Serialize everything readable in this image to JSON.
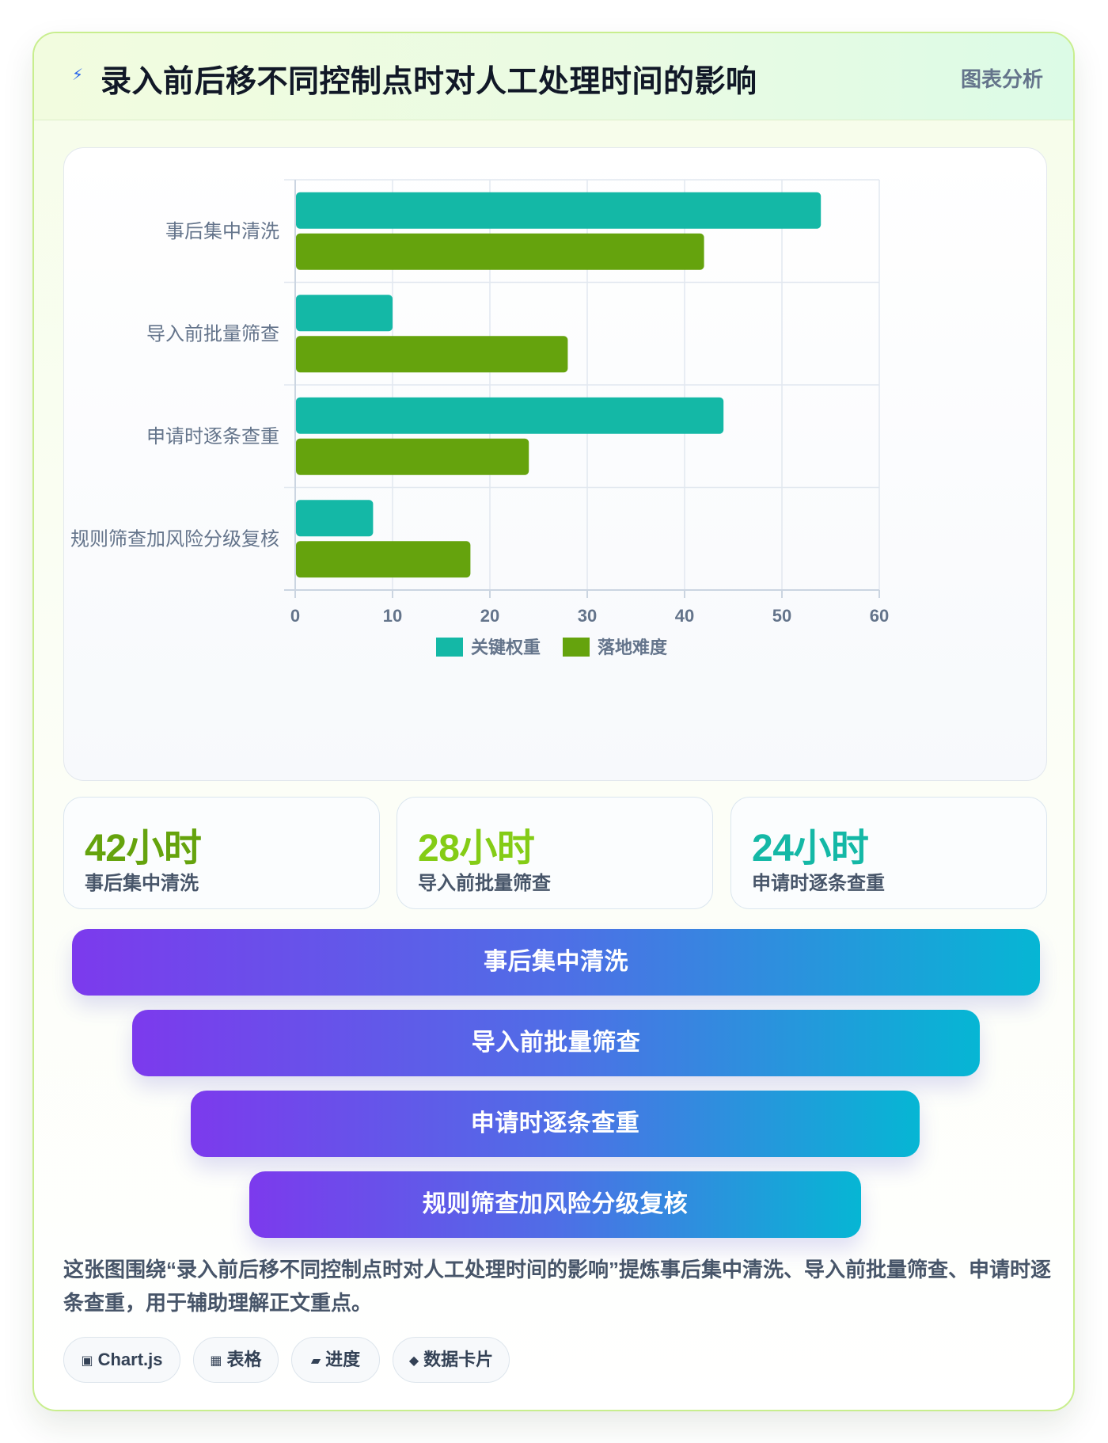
{
  "header": {
    "icon": "lightning-icon",
    "title": "录入前后移不同控制点时对人工处理时间的影响",
    "tag": "图表分析"
  },
  "chart_data": {
    "type": "bar",
    "orientation": "horizontal",
    "categories": [
      "事后集中清洗",
      "导入前批量筛查",
      "申请时逐条查重",
      "规则筛查加风险分级复核"
    ],
    "series": [
      {
        "name": "关键权重",
        "values": [
          54,
          10,
          44,
          8
        ],
        "color": "#14b8a6"
      },
      {
        "name": "落地难度",
        "values": [
          42,
          28,
          24,
          18
        ],
        "color": "#65a30d"
      }
    ],
    "xlim": [
      0,
      60
    ],
    "xticks": [
      0,
      10,
      20,
      30,
      40,
      50,
      60
    ],
    "grid": true,
    "legend": "bottom"
  },
  "stats": [
    {
      "value": "42小时",
      "label": "事后集中清洗",
      "color": "#65a30d"
    },
    {
      "value": "28小时",
      "label": "导入前批量筛查",
      "color": "#84cc16"
    },
    {
      "value": "24小时",
      "label": "申请时逐条查重",
      "color": "#14b8a6"
    }
  ],
  "funnel": [
    {
      "label": "事后集中清洗"
    },
    {
      "label": "导入前批量筛查"
    },
    {
      "label": "申请时逐条查重"
    },
    {
      "label": "规则筛查加风险分级复核"
    }
  ],
  "description": "这张图围绕“录入前后移不同控制点时对人工处理时间的影响”提炼事后集中清洗、导入前批量筛查、申请时逐条查重，用于辅助理解正文重点。",
  "chips": [
    {
      "icon": "chart-icon",
      "glyph": "▣",
      "label": "Chart.js"
    },
    {
      "icon": "table-icon",
      "glyph": "▦",
      "label": "表格"
    },
    {
      "icon": "progress-icon",
      "glyph": "▰",
      "label": "进度"
    },
    {
      "icon": "card-icon",
      "glyph": "◆",
      "label": "数据卡片"
    }
  ]
}
